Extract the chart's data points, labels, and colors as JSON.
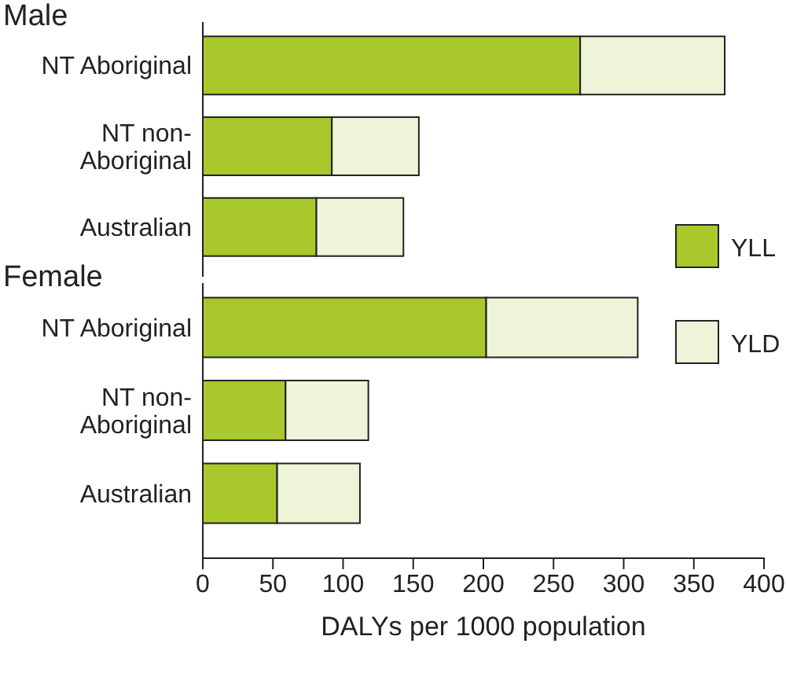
{
  "chart_data": [
    {
      "type": "bar",
      "orientation": "horizontal",
      "stacked": true,
      "title": "Male",
      "categories": [
        "NT Aboriginal",
        "NT non-Aboriginal",
        "Australian"
      ],
      "series": [
        {
          "name": "YLL",
          "color": "#a8c82c",
          "values": [
            269,
            92,
            81
          ]
        },
        {
          "name": "YLD",
          "color": "#eef4d8",
          "values": [
            103,
            62,
            62
          ]
        }
      ],
      "xlim": [
        0,
        400
      ],
      "tick_labels": "y",
      "legend": "right"
    },
    {
      "type": "bar",
      "orientation": "horizontal",
      "stacked": true,
      "title": "Female",
      "categories": [
        "NT Aboriginal",
        "NT non-Aboriginal",
        "Australian"
      ],
      "series": [
        {
          "color": "#a8c82c",
          "values": [
            202,
            59,
            53
          ]
        },
        {
          "color": "#eef4d8",
          "values": [
            108,
            59,
            59
          ]
        }
      ],
      "xlim": [
        0,
        400
      ],
      "xticks": [
        0,
        50,
        100,
        150,
        200,
        250,
        300,
        350,
        400
      ],
      "xlabel": "DALYs per 1000 population"
    }
  ]
}
